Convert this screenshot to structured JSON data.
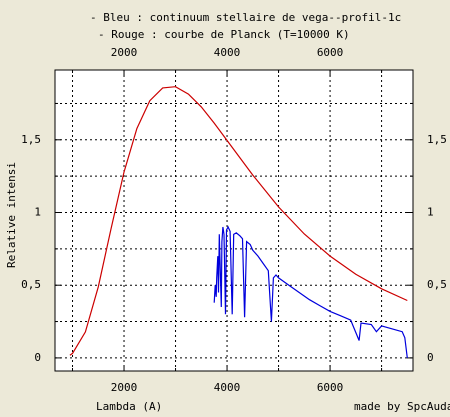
{
  "chart_data": {
    "type": "line",
    "x_label": "Lambda (A)",
    "y_label": "Relative intensi",
    "credit": "made by SpcAudac",
    "xlim": [
      660,
      7610
    ],
    "ylim": [
      -0.09,
      1.98
    ],
    "xticks": [
      2000,
      4000,
      6000
    ],
    "xminor": [
      1000,
      3000,
      5000,
      7000
    ],
    "yticks": [
      0,
      {
        "value": 0.5,
        "label": "0,5"
      },
      1,
      {
        "value": 1.5,
        "label": "1,5"
      }
    ],
    "yminor": [
      0.25,
      0.75,
      1.25,
      1.75
    ],
    "grid": true,
    "series": [
      {
        "name": "- Bleu : continuum stellaire de vega--profil-1c",
        "color": "#0000dd",
        "x": [
          3750,
          3770,
          3790,
          3800,
          3820,
          3835,
          3850,
          3870,
          3889,
          3900,
          3920,
          3940,
          3970,
          3990,
          4020,
          4060,
          4101,
          4130,
          4180,
          4250,
          4300,
          4340,
          4380,
          4450,
          4500,
          4600,
          4700,
          4800,
          4861,
          4900,
          4950,
          5000,
          5200,
          5400,
          5600,
          5800,
          6000,
          6200,
          6400,
          6563,
          6600,
          6800,
          6900,
          7000,
          7200,
          7400,
          7450,
          7500
        ],
        "values": [
          0.38,
          0.5,
          0.42,
          0.55,
          0.7,
          0.45,
          0.85,
          0.6,
          0.35,
          0.8,
          0.9,
          0.85,
          0.3,
          0.88,
          0.9,
          0.87,
          0.3,
          0.85,
          0.86,
          0.84,
          0.82,
          0.28,
          0.8,
          0.78,
          0.74,
          0.7,
          0.65,
          0.6,
          0.25,
          0.55,
          0.57,
          0.55,
          0.5,
          0.45,
          0.4,
          0.36,
          0.32,
          0.29,
          0.26,
          0.12,
          0.24,
          0.23,
          0.18,
          0.22,
          0.2,
          0.18,
          0.14,
          0.0
        ]
      },
      {
        "name": "- Rouge : courbe de Planck (T=10000 K)",
        "color": "#cc0000",
        "x": [
          950,
          1000,
          1250,
          1500,
          1750,
          2000,
          2250,
          2500,
          2750,
          3000,
          3250,
          3500,
          3750,
          4000,
          4500,
          5000,
          5500,
          6000,
          6500,
          7000,
          7500
        ],
        "values": [
          0.019,
          0.031,
          0.179,
          0.489,
          0.89,
          1.278,
          1.578,
          1.769,
          1.857,
          1.865,
          1.814,
          1.726,
          1.615,
          1.496,
          1.257,
          1.038,
          0.852,
          0.7,
          0.575,
          0.475,
          0.395
        ]
      }
    ]
  }
}
